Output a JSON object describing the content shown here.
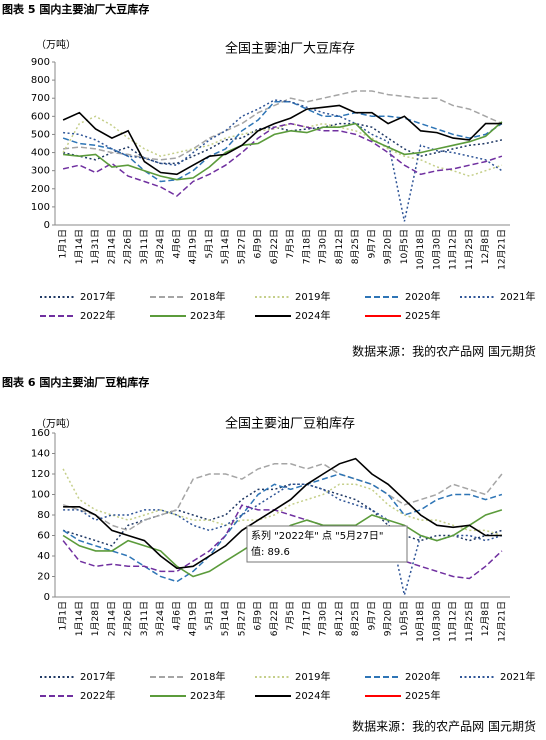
{
  "chart_data": [
    {
      "type": "line",
      "heading": "图表 5 国内主要油厂大豆库存",
      "title": "全国主要油厂大豆库存",
      "y_label": "（万吨）",
      "source": "数据来源：我的农产品网 国元期货",
      "categories": [
        "1月1日",
        "1月14日",
        "1月31日",
        "2月14日",
        "2月26日",
        "3月11日",
        "3月24日",
        "4月6日",
        "4月19日",
        "5月1日",
        "5月14日",
        "5月27日",
        "6月9日",
        "6月22日",
        "7月5日",
        "7月18日",
        "7月30日",
        "8月12日",
        "8月25日",
        "9月7日",
        "9月20日",
        "10月5日",
        "10月18日",
        "10月30日",
        "11月12日",
        "11月25日",
        "12月8日",
        "12月21日"
      ],
      "ylim": [
        0,
        900
      ],
      "yticks": [
        0,
        100,
        200,
        300,
        400,
        500,
        600,
        700,
        800,
        900
      ],
      "grid": false,
      "series": [
        {
          "name": "2017年",
          "color": "#1f3864",
          "style": "dotted",
          "values": [
            400,
            380,
            360,
            400,
            430,
            370,
            340,
            340,
            380,
            420,
            470,
            480,
            530,
            540,
            520,
            530,
            540,
            560,
            560,
            540,
            480,
            420,
            380,
            400,
            420,
            440,
            450,
            470
          ]
        },
        {
          "name": "2018年",
          "color": "#a5a5a5",
          "style": "dashed",
          "values": [
            420,
            430,
            420,
            400,
            390,
            370,
            360,
            370,
            420,
            480,
            520,
            560,
            620,
            660,
            700,
            680,
            700,
            720,
            740,
            740,
            720,
            710,
            700,
            700,
            660,
            640,
            600,
            560
          ]
        },
        {
          "name": "2019年",
          "color": "#c5cf8a",
          "style": "dotted",
          "values": [
            400,
            560,
            600,
            550,
            480,
            420,
            380,
            400,
            420,
            440,
            480,
            500,
            520,
            530,
            560,
            540,
            560,
            540,
            520,
            480,
            420,
            380,
            360,
            320,
            300,
            270,
            300,
            330
          ]
        },
        {
          "name": "2020年",
          "color": "#2e75b6",
          "style": "dashed",
          "values": [
            480,
            450,
            440,
            420,
            380,
            300,
            240,
            250,
            300,
            380,
            420,
            520,
            580,
            680,
            680,
            640,
            600,
            600,
            620,
            600,
            600,
            590,
            560,
            530,
            500,
            480,
            500,
            560
          ]
        },
        {
          "name": "2021年",
          "color": "#2f5597",
          "style": "dotted",
          "values": [
            510,
            500,
            470,
            420,
            380,
            370,
            340,
            330,
            400,
            470,
            520,
            600,
            640,
            690,
            680,
            650,
            620,
            600,
            560,
            500,
            460,
            20,
            440,
            410,
            400,
            380,
            360,
            300
          ]
        },
        {
          "name": "2022年",
          "color": "#7030a0",
          "style": "dashed",
          "values": [
            310,
            330,
            290,
            340,
            270,
            240,
            210,
            160,
            240,
            280,
            330,
            400,
            480,
            540,
            560,
            540,
            520,
            520,
            500,
            460,
            400,
            330,
            280,
            300,
            310,
            330,
            350,
            380
          ]
        },
        {
          "name": "2023年",
          "color": "#5b9b3b",
          "style": "solid",
          "values": [
            390,
            380,
            390,
            320,
            330,
            300,
            270,
            250,
            260,
            320,
            400,
            440,
            450,
            500,
            520,
            510,
            540,
            540,
            560,
            470,
            430,
            390,
            400,
            420,
            440,
            460,
            490,
            570
          ]
        },
        {
          "name": "2024年",
          "color": "#000000",
          "style": "solid",
          "values": [
            580,
            620,
            530,
            480,
            520,
            350,
            290,
            280,
            330,
            380,
            390,
            440,
            520,
            560,
            590,
            640,
            650,
            660,
            620,
            620,
            560,
            600,
            520,
            510,
            480,
            470,
            560,
            560
          ]
        },
        {
          "name": "2025年",
          "color": "#ff0000",
          "style": "solid",
          "values": [
            null,
            null,
            null,
            null,
            null,
            null,
            null,
            null,
            null,
            null,
            null,
            null,
            null,
            null,
            null,
            null,
            null,
            null,
            null,
            null,
            null,
            null,
            null,
            null,
            null,
            null,
            null,
            null
          ]
        }
      ]
    },
    {
      "type": "line",
      "heading": "图表 6 国内主要油厂豆粕库存",
      "title": "全国主要油厂豆粕库存",
      "y_label": "（万吨）",
      "source": "数据来源：我的农产品网 国元期货",
      "categories": [
        "1月1日",
        "1月14日",
        "1月28日",
        "2月14日",
        "2月26日",
        "3月11日",
        "3月24日",
        "4月6日",
        "4月19日",
        "5月1日",
        "5月14日",
        "5月27日",
        "6月9日",
        "6月22日",
        "7月5日",
        "7月17日",
        "7月30日",
        "8月12日",
        "8月25日",
        "9月7日",
        "9月20日",
        "10月5日",
        "10月18日",
        "10月30日",
        "11月12日",
        "11月25日",
        "12月8日",
        "12月21日"
      ],
      "ylim": [
        0,
        160
      ],
      "yticks": [
        0,
        20,
        40,
        60,
        80,
        100,
        120,
        140,
        160
      ],
      "grid": false,
      "tooltip": [
        "系列 \"2022年\" 点 \"5月27日\"",
        "值: 89.6"
      ],
      "series": [
        {
          "name": "2017年",
          "color": "#1f3864",
          "style": "dotted",
          "values": [
            65,
            60,
            55,
            50,
            70,
            75,
            80,
            85,
            80,
            75,
            80,
            95,
            105,
            105,
            110,
            110,
            105,
            100,
            95,
            85,
            70,
            60,
            55,
            60,
            60,
            55,
            60,
            65
          ]
        },
        {
          "name": "2018年",
          "color": "#a5a5a5",
          "style": "dashed",
          "values": [
            90,
            85,
            80,
            70,
            65,
            75,
            80,
            85,
            115,
            120,
            120,
            115,
            125,
            130,
            130,
            125,
            130,
            120,
            115,
            110,
            100,
            90,
            95,
            100,
            110,
            105,
            100,
            120
          ]
        },
        {
          "name": "2019年",
          "color": "#c5cf8a",
          "style": "dotted",
          "values": [
            125,
            95,
            85,
            80,
            75,
            80,
            85,
            80,
            75,
            75,
            70,
            75,
            75,
            80,
            90,
            95,
            100,
            110,
            110,
            105,
            90,
            80,
            75,
            75,
            70,
            65,
            65,
            60
          ]
        },
        {
          "name": "2020年",
          "color": "#2e75b6",
          "style": "dashed",
          "values": [
            65,
            55,
            50,
            45,
            40,
            30,
            20,
            15,
            25,
            40,
            60,
            80,
            100,
            110,
            105,
            110,
            115,
            120,
            115,
            110,
            100,
            80,
            85,
            95,
            100,
            100,
            95,
            100
          ]
        },
        {
          "name": "2021年",
          "color": "#2f5597",
          "style": "dotted",
          "values": [
            85,
            85,
            75,
            80,
            80,
            85,
            85,
            80,
            70,
            65,
            70,
            80,
            90,
            100,
            110,
            110,
            105,
            95,
            90,
            85,
            75,
            2,
            60,
            55,
            60,
            60,
            55,
            60
          ]
        },
        {
          "name": "2022年",
          "color": "#7030a0",
          "style": "dashed",
          "values": [
            55,
            35,
            30,
            32,
            30,
            30,
            25,
            25,
            35,
            45,
            60,
            89.6,
            85,
            85,
            80,
            75,
            70,
            60,
            55,
            45,
            40,
            35,
            30,
            25,
            20,
            18,
            30,
            45
          ]
        },
        {
          "name": "2023年",
          "color": "#5b9b3b",
          "style": "solid",
          "values": [
            60,
            50,
            45,
            45,
            55,
            50,
            45,
            30,
            20,
            25,
            35,
            45,
            55,
            60,
            70,
            75,
            70,
            70,
            70,
            80,
            75,
            70,
            60,
            55,
            60,
            70,
            80,
            85
          ]
        },
        {
          "name": "2024年",
          "color": "#000000",
          "style": "solid",
          "values": [
            88,
            88,
            80,
            65,
            60,
            55,
            40,
            28,
            30,
            40,
            50,
            65,
            75,
            85,
            95,
            110,
            120,
            130,
            135,
            120,
            110,
            95,
            80,
            70,
            68,
            70,
            60,
            60
          ]
        },
        {
          "name": "2025年",
          "color": "#ff0000",
          "style": "solid",
          "values": [
            null,
            null,
            null,
            null,
            null,
            null,
            null,
            null,
            null,
            null,
            null,
            null,
            null,
            null,
            null,
            null,
            null,
            null,
            null,
            null,
            null,
            null,
            null,
            null,
            null,
            null,
            null,
            null
          ]
        }
      ]
    }
  ]
}
